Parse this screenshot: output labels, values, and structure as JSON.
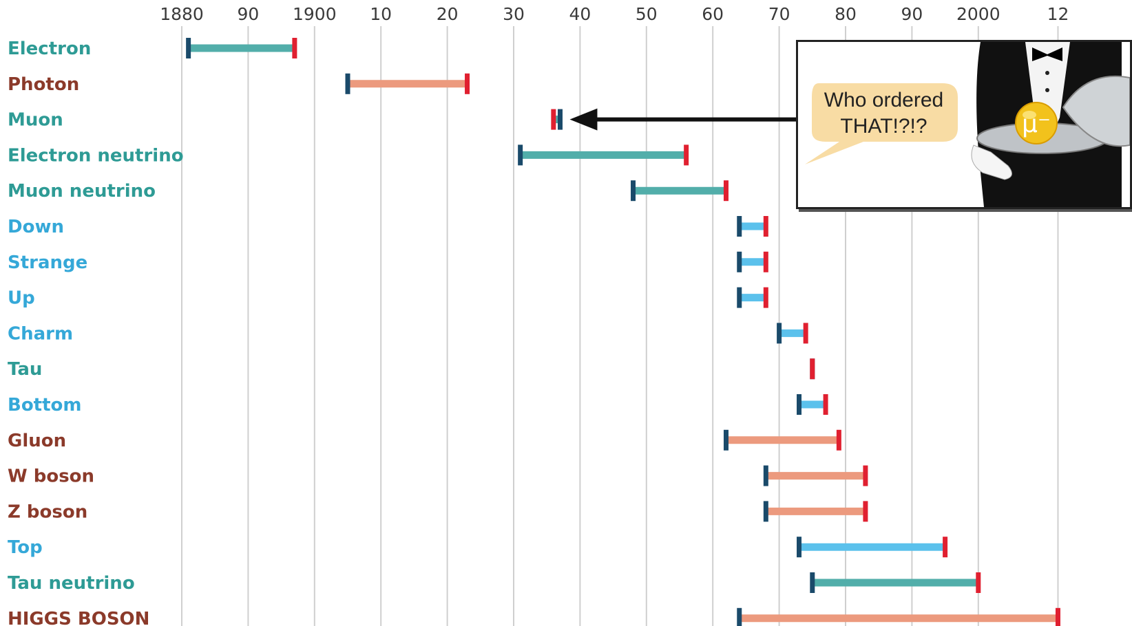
{
  "chart_data": {
    "type": "timeline-range",
    "x_tick_labels": [
      "1880",
      "90",
      "1900",
      "10",
      "20",
      "30",
      "40",
      "50",
      "60",
      "70",
      "80",
      "90",
      "2000",
      "12"
    ],
    "x_ticks": [
      1880,
      1890,
      1900,
      1910,
      1920,
      1930,
      1940,
      1950,
      1960,
      1970,
      1980,
      1990,
      2000,
      2012
    ],
    "xlim": [
      1879,
      2022
    ],
    "grid": true,
    "legend": "none",
    "colors": {
      "lepton": "#52aeaa",
      "boson": "#ec9a7e",
      "quark": "#5bc1ec",
      "start_cap": "#1a4a6a",
      "end_cap": "#e02030",
      "label_lepton": "#2e9b95",
      "label_boson": "#8b3a2a",
      "label_quark": "#35a8d8",
      "grid": "#cfcfcf"
    },
    "series": [
      {
        "name": "Electron",
        "category": "lepton",
        "start": 1881,
        "end": 1897
      },
      {
        "name": "Photon",
        "category": "boson",
        "start": 1905,
        "end": 1923
      },
      {
        "name": "Muon",
        "category": "lepton",
        "start": 1937,
        "end": 1936
      },
      {
        "name": "Electron neutrino",
        "category": "lepton",
        "start": 1931,
        "end": 1956
      },
      {
        "name": "Muon neutrino",
        "category": "lepton",
        "start": 1948,
        "end": 1962
      },
      {
        "name": "Down",
        "category": "quark",
        "start": 1964,
        "end": 1968
      },
      {
        "name": "Strange",
        "category": "quark",
        "start": 1964,
        "end": 1968
      },
      {
        "name": "Up",
        "category": "quark",
        "start": 1964,
        "end": 1968
      },
      {
        "name": "Charm",
        "category": "quark",
        "start": 1970,
        "end": 1974
      },
      {
        "name": "Tau",
        "category": "lepton",
        "start": 1975,
        "end": 1975
      },
      {
        "name": "Bottom",
        "category": "quark",
        "start": 1973,
        "end": 1977
      },
      {
        "name": "Gluon",
        "category": "boson",
        "start": 1962,
        "end": 1979
      },
      {
        "name": "W boson",
        "category": "boson",
        "start": 1968,
        "end": 1983
      },
      {
        "name": "Z boson",
        "category": "boson",
        "start": 1968,
        "end": 1983
      },
      {
        "name": "Top",
        "category": "quark",
        "start": 1973,
        "end": 1995
      },
      {
        "name": "Tau neutrino",
        "category": "lepton",
        "start": 1975,
        "end": 2000
      },
      {
        "name": "HIGGS BOSON",
        "category": "boson",
        "start": 1964,
        "end": 2012
      }
    ],
    "annotation": {
      "text_line1": "Who ordered",
      "text_line2": "THAT!?!?",
      "symbol": "μ⁻",
      "points_to": "Muon"
    }
  }
}
